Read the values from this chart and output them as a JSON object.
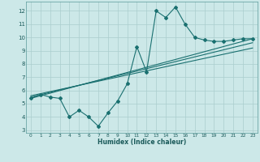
{
  "xlabel": "Humidex (Indice chaleur)",
  "bg_color": "#cce8e8",
  "grid_color": "#aacece",
  "line_color": "#1a7070",
  "xlim": [
    -0.5,
    23.5
  ],
  "ylim": [
    2.8,
    12.7
  ],
  "xticks": [
    0,
    1,
    2,
    3,
    4,
    5,
    6,
    7,
    8,
    9,
    10,
    11,
    12,
    13,
    14,
    15,
    16,
    17,
    18,
    19,
    20,
    21,
    22,
    23
  ],
  "yticks": [
    3,
    4,
    5,
    6,
    7,
    8,
    9,
    10,
    11,
    12
  ],
  "scatter_x": [
    0,
    1,
    2,
    3,
    4,
    5,
    6,
    7,
    8,
    9,
    10,
    11,
    12,
    13,
    14,
    15,
    16,
    17,
    18,
    19,
    20,
    21,
    22,
    23
  ],
  "scatter_y": [
    5.4,
    5.7,
    5.5,
    5.4,
    4.0,
    4.5,
    4.0,
    3.3,
    4.3,
    5.2,
    6.5,
    9.3,
    7.4,
    12.0,
    11.5,
    12.3,
    11.0,
    10.0,
    9.8,
    9.7,
    9.7,
    9.8,
    9.9,
    9.9
  ],
  "line1_x": [
    0,
    23
  ],
  "line1_y": [
    5.4,
    9.9
  ],
  "line2_x": [
    0,
    23
  ],
  "line2_y": [
    5.5,
    9.6
  ],
  "line3_x": [
    0,
    23
  ],
  "line3_y": [
    5.6,
    9.2
  ]
}
